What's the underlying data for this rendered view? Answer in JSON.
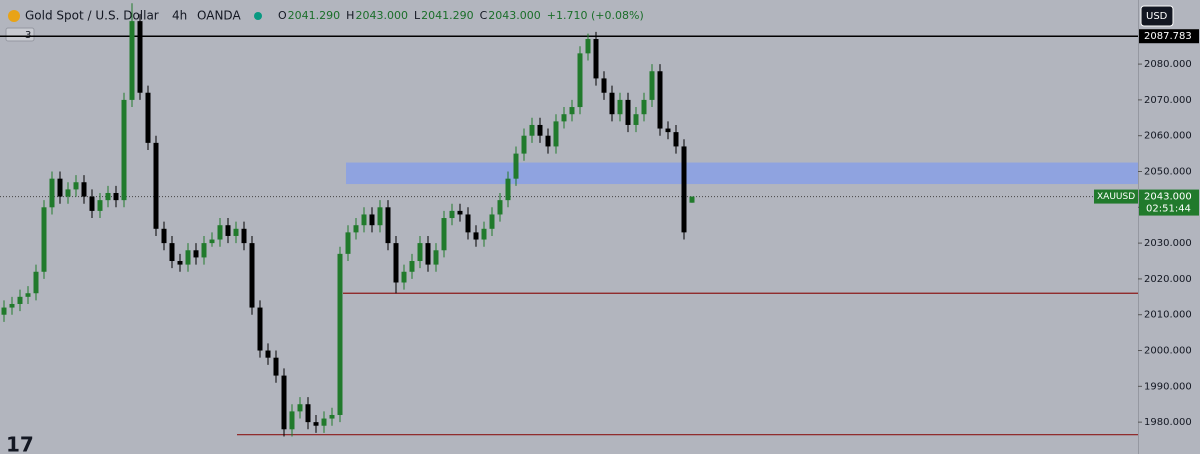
{
  "chart_data": {
    "type": "candlestick",
    "title": "Gold Spot / U.S. Dollar",
    "interval": "4h",
    "source": "OANDA",
    "legend": [
      {
        "label": "O",
        "value": "2041.290"
      },
      {
        "label": "H",
        "value": "2043.000"
      },
      {
        "label": "L",
        "value": "2041.290"
      },
      {
        "label": "C",
        "value": "2043.000"
      }
    ],
    "change": "+1.710 (+0.08%)",
    "currency": "USD",
    "collapsed_count": "3",
    "up_color": "#217a2c",
    "down_color": "#000000",
    "ylim": [
      1971.1,
      2097.9
    ],
    "yticks": [
      {
        "value": 1980,
        "label": "1980.000"
      },
      {
        "value": 1990,
        "label": "1990.000"
      },
      {
        "value": 2000,
        "label": "2000.000"
      },
      {
        "value": 2010,
        "label": "2010.000"
      },
      {
        "value": 2020,
        "label": "2020.000"
      },
      {
        "value": 2030,
        "label": "2030.000"
      },
      {
        "value": 2040,
        "label": "2040.000"
      },
      {
        "value": 2050,
        "label": "2050.000"
      },
      {
        "value": 2060,
        "label": "2060.000"
      },
      {
        "value": 2070,
        "label": "2070.000"
      },
      {
        "value": 2080,
        "label": "2080.000"
      }
    ],
    "high_line": {
      "value": 2087.783,
      "label": "2087.783"
    },
    "support_lines": [
      2016,
      1976.5
    ],
    "support_color": "#8b1a1a",
    "zone": [
      2046.5,
      2052.5
    ],
    "zone_color": "#8fa3e0",
    "last_price": {
      "symbol": "XAUUSD",
      "price": {
        "value": 2043,
        "label": "2043.000"
      },
      "countdown": "02:51:44"
    },
    "open": [
      2010,
      2012,
      2013,
      2015,
      2016,
      2022,
      2040,
      2048,
      2043,
      2045,
      2047,
      2043,
      2039,
      2042,
      2044,
      2042,
      2070,
      2092,
      2072,
      2058,
      2034,
      2030,
      2025,
      2024,
      2028,
      2026,
      2030,
      2031,
      2035,
      2032,
      2034,
      2030,
      2012,
      2000,
      1998,
      1993,
      1978,
      1983,
      1985,
      1980,
      1979,
      1981,
      1982,
      2027,
      2033,
      2035,
      2038,
      2035,
      2040,
      2030,
      2019,
      2022,
      2025,
      2030,
      2024,
      2028,
      2037,
      2039,
      2038,
      2033,
      2031,
      2034,
      2038,
      2042,
      2048,
      2055,
      2060,
      2063,
      2060,
      2057,
      2064,
      2066,
      2068,
      2083,
      2087,
      2076,
      2072,
      2066,
      2070,
      2063,
      2066,
      2070,
      2078,
      2062,
      2061,
      2057,
      2041.29
    ],
    "high": [
      2014,
      2015,
      2017,
      2018,
      2024,
      2042,
      2050,
      2050,
      2047,
      2049,
      2049,
      2045,
      2044,
      2046,
      2046,
      2072,
      2097,
      2094,
      2074,
      2060,
      2036,
      2032,
      2027,
      2030,
      2030,
      2032,
      2033,
      2037,
      2037,
      2036,
      2036,
      2032,
      2014,
      2002,
      2000,
      1995,
      1985,
      1987,
      1987,
      1982,
      1983,
      1984,
      2029,
      2035,
      2037,
      2040,
      2040,
      2042,
      2042,
      2032,
      2024,
      2027,
      2032,
      2032,
      2030,
      2039,
      2041,
      2041,
      2040,
      2035,
      2036,
      2040,
      2044,
      2050,
      2057,
      2062,
      2065,
      2065,
      2062,
      2066,
      2068,
      2070,
      2085,
      2088.5,
      2089,
      2078,
      2074,
      2072,
      2072,
      2068,
      2072,
      2080,
      2080,
      2064,
      2063,
      2059,
      2043
    ],
    "low": [
      2008,
      2010,
      2011,
      2013,
      2014,
      2020,
      2038,
      2041,
      2041,
      2043,
      2041,
      2037,
      2037,
      2040,
      2040,
      2040,
      2068,
      2070,
      2056,
      2032,
      2028,
      2023,
      2022,
      2022,
      2024,
      2024,
      2029,
      2029,
      2030,
      2030,
      2028,
      2010,
      1998,
      1996,
      1991,
      1976,
      1976,
      1981,
      1978,
      1977,
      1977,
      1979,
      1980,
      2025,
      2031,
      2033,
      2033,
      2033,
      2028,
      2016,
      2017,
      2020,
      2023,
      2022,
      2022,
      2026,
      2035,
      2036,
      2031,
      2029,
      2029,
      2032,
      2036,
      2040,
      2046,
      2053,
      2058,
      2058,
      2055,
      2055,
      2062,
      2064,
      2066,
      2081,
      2074,
      2070,
      2064,
      2064,
      2061,
      2061,
      2064,
      2068,
      2060,
      2059,
      2055,
      2031,
      2041.29
    ],
    "close": [
      2012,
      2013,
      2015,
      2016,
      2022,
      2040,
      2048,
      2043,
      2045,
      2047,
      2043,
      2039,
      2042,
      2044,
      2042,
      2070,
      2092,
      2072,
      2058,
      2034,
      2030,
      2025,
      2024,
      2028,
      2026,
      2030,
      2031,
      2035,
      2032,
      2034,
      2030,
      2012,
      2000,
      1998,
      1993,
      1978,
      1983,
      1985,
      1980,
      1979,
      1981,
      1982,
      2027,
      2033,
      2035,
      2038,
      2035,
      2040,
      2030,
      2019,
      2022,
      2025,
      2030,
      2024,
      2028,
      2037,
      2039,
      2038,
      2033,
      2031,
      2034,
      2038,
      2042,
      2048,
      2055,
      2060,
      2063,
      2060,
      2057,
      2064,
      2066,
      2068,
      2083,
      2087,
      2076,
      2072,
      2066,
      2070,
      2063,
      2066,
      2070,
      2078,
      2062,
      2061,
      2057,
      2033,
      2043
    ]
  }
}
